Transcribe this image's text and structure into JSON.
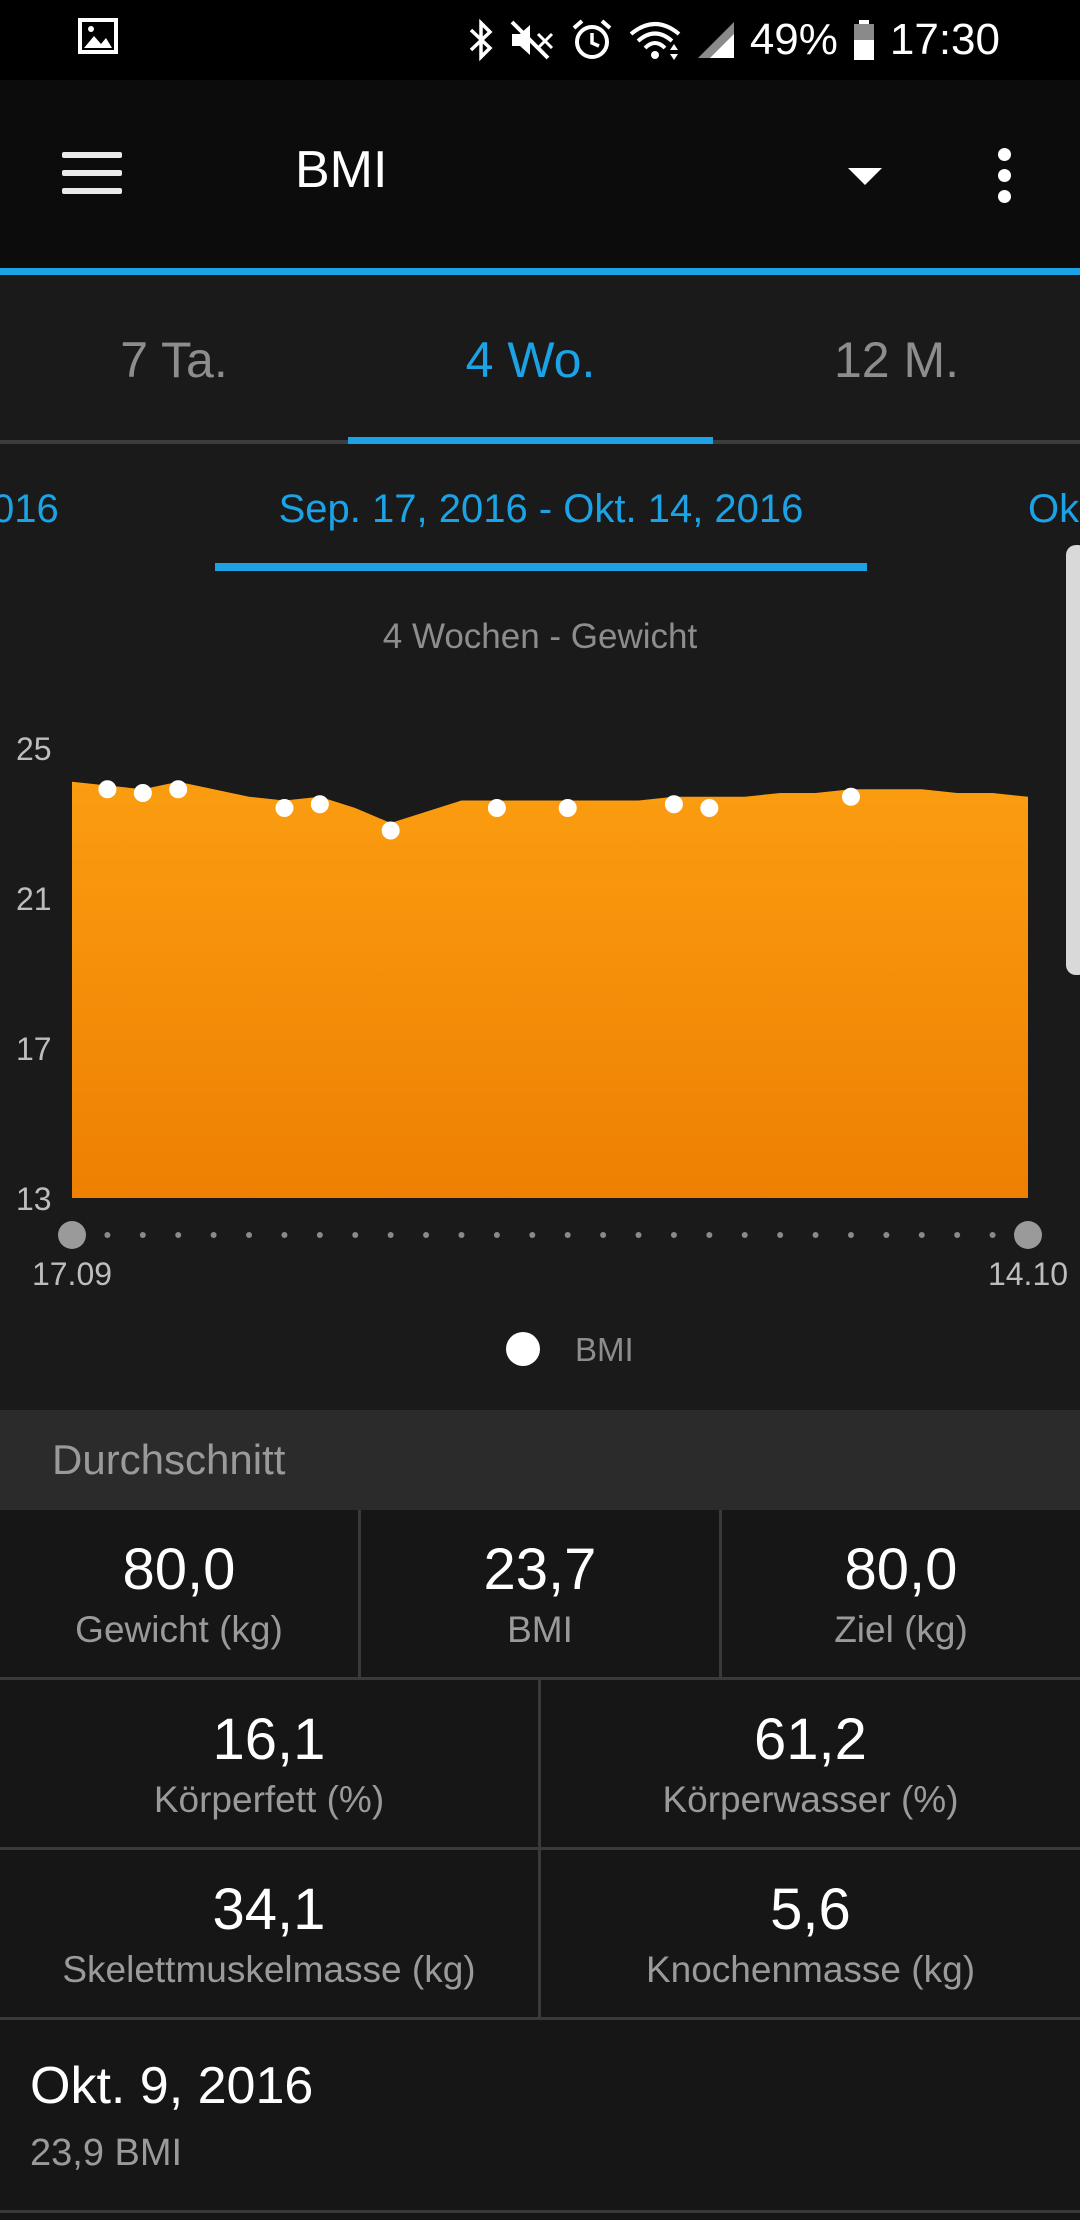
{
  "status_bar": {
    "battery": "49%",
    "time": "17:30",
    "icons": [
      "gallery-icon",
      "bluetooth-icon",
      "mute-icon",
      "alarm-icon",
      "wifi-icon",
      "signal-icon",
      "battery-icon"
    ]
  },
  "app_bar": {
    "title": "BMI",
    "icons": [
      "menu-icon",
      "dropdown-arrow-icon",
      "more-vert-icon"
    ]
  },
  "tabs": [
    {
      "label": "7 Ta.",
      "active": false
    },
    {
      "label": "4 Wo.",
      "active": true
    },
    {
      "label": "12 M.",
      "active": false
    }
  ],
  "date_range": {
    "previous": "016",
    "current": "Sep. 17, 2016 - Okt. 14, 2016",
    "next": "Ok"
  },
  "chart_data": {
    "type": "area",
    "title": "4 Wochen - Gewicht",
    "xlabel": "",
    "ylabel": "",
    "ylim": [
      13,
      25
    ],
    "y_ticks": [
      "25",
      "21",
      "17",
      "13"
    ],
    "x_tick_labels": [
      "17.09",
      "14.10"
    ],
    "legend": "BMI",
    "legend_position": "bottom",
    "area_color": "#f7920f",
    "x_days": [
      0,
      1,
      2,
      3,
      4,
      5,
      6,
      7,
      8,
      9,
      10,
      11,
      12,
      13,
      14,
      15,
      16,
      17,
      18,
      19,
      20,
      21,
      22,
      23,
      24,
      25,
      26,
      27
    ],
    "area_values": [
      24.1,
      24.0,
      23.9,
      24.1,
      23.9,
      23.7,
      23.6,
      23.7,
      23.4,
      23.0,
      23.3,
      23.6,
      23.6,
      23.6,
      23.6,
      23.6,
      23.6,
      23.7,
      23.7,
      23.7,
      23.8,
      23.8,
      23.9,
      23.9,
      23.9,
      23.8,
      23.8,
      23.7
    ],
    "series": [
      {
        "name": "BMI",
        "x_days": [
          1,
          2,
          3,
          6,
          7,
          9,
          12,
          14,
          17,
          18,
          22
        ],
        "values": [
          23.9,
          23.8,
          23.9,
          23.4,
          23.5,
          22.8,
          23.4,
          23.4,
          23.5,
          23.4,
          23.7
        ]
      }
    ]
  },
  "summary": {
    "header": "Durchschnitt",
    "stats": [
      {
        "value": "80,0",
        "label": "Gewicht (kg)"
      },
      {
        "value": "23,7",
        "label": "BMI"
      },
      {
        "value": "80,0",
        "label": "Ziel (kg)"
      },
      {
        "value": "16,1",
        "label": "Körperfett (%)"
      },
      {
        "value": "61,2",
        "label": "Körperwasser (%)"
      },
      {
        "value": "34,1",
        "label": "Skelettmuskelmasse (kg)"
      },
      {
        "value": "5,6",
        "label": "Knochenmasse (kg)"
      }
    ]
  },
  "latest": {
    "date": "Okt. 9, 2016",
    "value": "23,9 BMI"
  }
}
